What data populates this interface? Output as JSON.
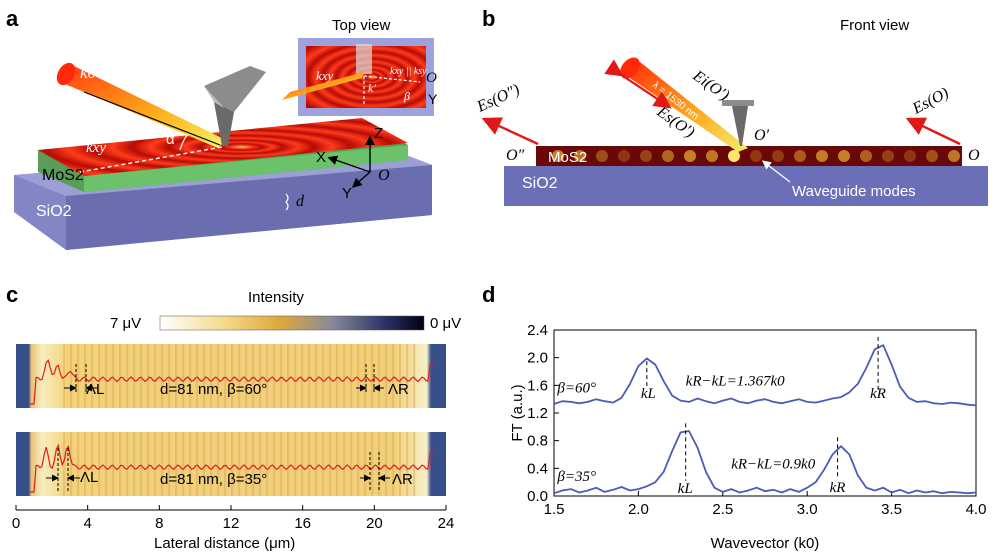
{
  "panels": {
    "a": {
      "label": "a",
      "top_view": "Top view",
      "labels": {
        "k0": "k0",
        "kxy": "kxy",
        "alpha": "α",
        "mos2": "MoS2",
        "sio2": "SiO2",
        "d": "d",
        "X": "X",
        "Y": "Y",
        "Z": "Z",
        "O": "O",
        "inset_kxy": "kxy",
        "inset_kprime": "k′",
        "inset_kpar": "kxy || ksy",
        "beta": "β",
        "inset_O": "O",
        "inset_Y": "Y"
      }
    },
    "b": {
      "label": "b",
      "front_view": "Front view",
      "labels": {
        "Ei": "Ei(O′)",
        "Es_O2": "Es(O″)",
        "Es_O1": "Es(O′)",
        "Es_O": "Es(O)",
        "wavelength": "λ = 1530 nm",
        "O2": "O″",
        "O1": "O′",
        "O": "O",
        "mos2": "MoS2",
        "sio2": "SiO2",
        "waveguide": "Waveguide modes"
      }
    },
    "c": {
      "label": "c",
      "colorbar": {
        "title": "Intensity",
        "max": "7 μV",
        "min": "0 μV"
      },
      "strips": [
        {
          "caption": "d=81 nm, β=60°",
          "lambda_L": "ΛL",
          "lambda_R": "ΛR"
        },
        {
          "caption": "d=81 nm, β=35°",
          "lambda_L": "ΛL",
          "lambda_R": "ΛR"
        }
      ],
      "xaxis": {
        "label": "Lateral distance (μm)",
        "ticks": [
          0,
          4,
          8,
          12,
          16,
          20,
          24
        ],
        "range": [
          0,
          24
        ]
      }
    },
    "d": {
      "label": "d"
    }
  },
  "chart_data": [
    {
      "type": "line",
      "panel": "d",
      "xlabel": "Wavevector (k0)",
      "ylabel": "FT (a.u.)",
      "xlim": [
        1.5,
        4.0
      ],
      "ylim": [
        0.0,
        2.4
      ],
      "xticks": [
        1.5,
        2.0,
        2.5,
        3.0,
        3.5,
        4.0
      ],
      "yticks": [
        0.0,
        0.4,
        0.8,
        1.2,
        1.6,
        2.0,
        2.4
      ],
      "color": "#4a5bb8",
      "series": [
        {
          "name": "β=60°",
          "x": [
            1.5,
            1.55,
            1.6,
            1.65,
            1.7,
            1.75,
            1.8,
            1.85,
            1.9,
            1.95,
            2.0,
            2.05,
            2.1,
            2.15,
            2.2,
            2.25,
            2.3,
            2.35,
            2.4,
            2.45,
            2.5,
            2.55,
            2.6,
            2.65,
            2.7,
            2.75,
            2.8,
            2.85,
            2.9,
            2.95,
            3.0,
            3.05,
            3.1,
            3.15,
            3.2,
            3.25,
            3.3,
            3.35,
            3.4,
            3.45,
            3.5,
            3.55,
            3.6,
            3.65,
            3.7,
            3.75,
            3.8,
            3.85,
            3.9,
            3.95,
            4.0
          ],
          "y": [
            1.33,
            1.37,
            1.36,
            1.34,
            1.36,
            1.4,
            1.37,
            1.35,
            1.42,
            1.62,
            1.88,
            1.99,
            1.9,
            1.66,
            1.45,
            1.38,
            1.36,
            1.41,
            1.37,
            1.34,
            1.38,
            1.41,
            1.36,
            1.34,
            1.38,
            1.4,
            1.36,
            1.34,
            1.37,
            1.4,
            1.36,
            1.35,
            1.38,
            1.41,
            1.43,
            1.5,
            1.62,
            1.85,
            2.12,
            2.18,
            1.9,
            1.58,
            1.42,
            1.36,
            1.37,
            1.34,
            1.33,
            1.35,
            1.34,
            1.32,
            1.31
          ]
        },
        {
          "name": "β=35°",
          "x": [
            1.5,
            1.55,
            1.6,
            1.65,
            1.7,
            1.75,
            1.8,
            1.85,
            1.9,
            1.95,
            2.0,
            2.05,
            2.1,
            2.15,
            2.2,
            2.25,
            2.3,
            2.35,
            2.4,
            2.45,
            2.5,
            2.55,
            2.6,
            2.65,
            2.7,
            2.75,
            2.8,
            2.85,
            2.9,
            2.95,
            3.0,
            3.05,
            3.1,
            3.15,
            3.2,
            3.25,
            3.3,
            3.35,
            3.4,
            3.45,
            3.5,
            3.55,
            3.6,
            3.65,
            3.7,
            3.75,
            3.8,
            3.85,
            3.9,
            3.95,
            4.0
          ],
          "y": [
            0.04,
            0.08,
            0.1,
            0.05,
            0.08,
            0.12,
            0.06,
            0.09,
            0.13,
            0.08,
            0.1,
            0.14,
            0.2,
            0.35,
            0.65,
            0.92,
            0.94,
            0.7,
            0.35,
            0.12,
            0.06,
            0.1,
            0.05,
            0.08,
            0.12,
            0.07,
            0.09,
            0.05,
            0.1,
            0.06,
            0.12,
            0.2,
            0.38,
            0.6,
            0.72,
            0.6,
            0.3,
            0.12,
            0.08,
            0.12,
            0.05,
            0.09,
            0.04,
            0.08,
            0.05,
            0.07,
            0.04,
            0.06,
            0.05,
            0.04,
            0.05
          ]
        }
      ],
      "annotations": {
        "beta60": "β=60°",
        "beta35": "β=35°",
        "diff60": "kR−kL=1.367k0",
        "diff35": "kR−kL=0.9k0",
        "kL": "kL",
        "kR": "kR",
        "peaks": {
          "beta60": {
            "kL": 2.05,
            "kR": 3.42
          },
          "beta35": {
            "kL": 2.28,
            "kR": 3.18
          }
        }
      }
    }
  ]
}
